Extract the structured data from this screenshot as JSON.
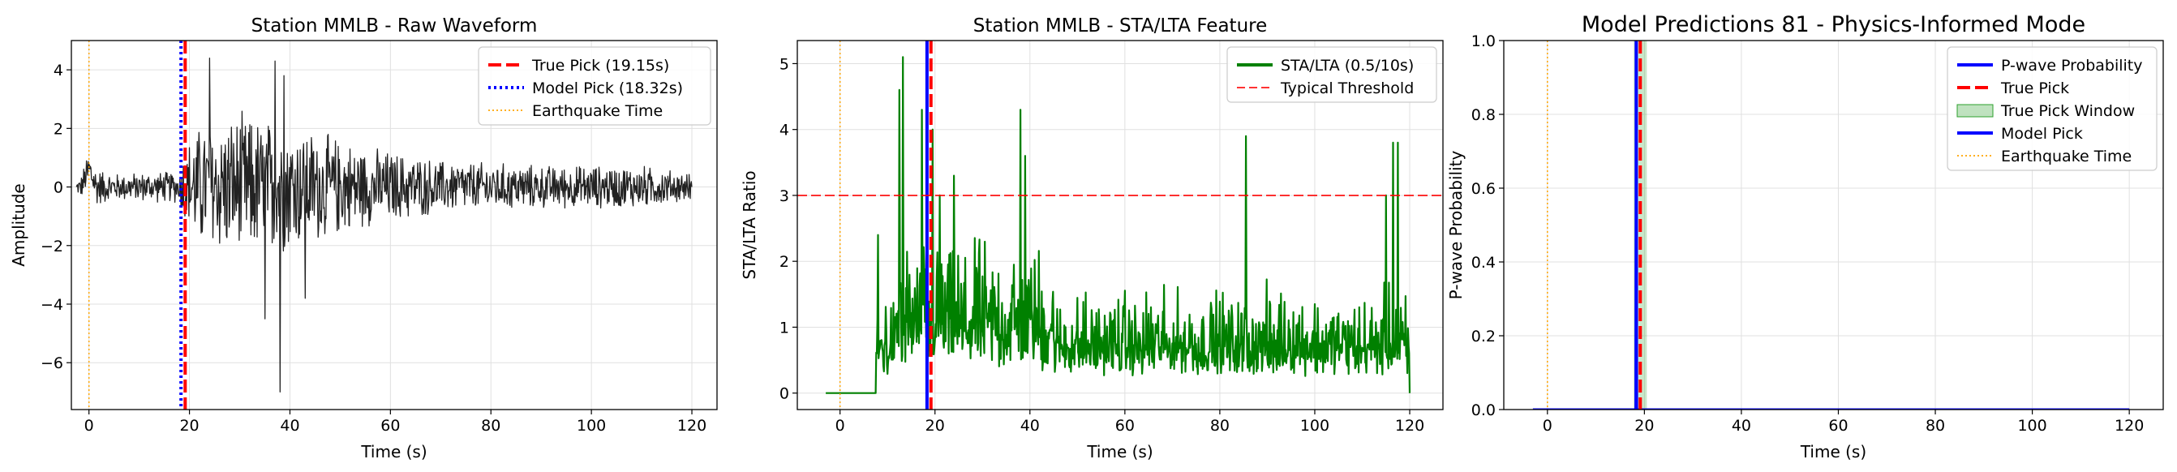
{
  "chart_data": [
    {
      "type": "line",
      "title": "Station MMLB - Raw Waveform",
      "xlabel": "Time (s)",
      "ylabel": "Amplitude",
      "xlim": [
        -3.5,
        125
      ],
      "ylim": [
        -7.6,
        5.0
      ],
      "xticks": [
        0,
        20,
        40,
        60,
        80,
        100,
        120
      ],
      "xtick_labels": [
        "0",
        "20",
        "40",
        "60",
        "80",
        "100",
        "120"
      ],
      "yticks": [
        -6,
        -4,
        -2,
        0,
        2,
        4
      ],
      "ytick_labels": [
        "−6",
        "−4",
        "−2",
        "0",
        "2",
        "4"
      ],
      "grid": true,
      "legend_position": "top-right",
      "series": [
        {
          "name": "",
          "kind": "noise",
          "color": "#222222",
          "x_start": -2.5,
          "x_end": 120,
          "envelope": [
            [
              -2.5,
              0.2
            ],
            [
              0,
              0.8
            ],
            [
              5,
              0.5
            ],
            [
              18,
              0.6
            ],
            [
              19,
              1.5
            ],
            [
              22,
              2.3
            ],
            [
              30,
              2.7
            ],
            [
              40,
              2.4
            ],
            [
              55,
              1.5
            ],
            [
              70,
              1.0
            ],
            [
              90,
              0.8
            ],
            [
              110,
              0.8
            ],
            [
              120,
              0.5
            ]
          ],
          "spikes": [
            [
              24,
              4.4
            ],
            [
              35,
              -4.5
            ],
            [
              38,
              -7.0
            ],
            [
              38.8,
              3.8
            ],
            [
              43,
              -3.8
            ],
            [
              37,
              4.3
            ]
          ]
        }
      ],
      "vlines": [
        {
          "name": "True Pick (19.15s)",
          "x": 19.15,
          "color": "#ff0000",
          "style": "dashed"
        },
        {
          "name": "Model Pick (18.32s)",
          "x": 18.32,
          "color": "#0000ff",
          "style": "dotted"
        },
        {
          "name": "Earthquake Time",
          "x": 0,
          "color": "#ffa500",
          "style": "dotted-thin"
        }
      ],
      "legend": [
        "True Pick (19.15s)",
        "Model Pick (18.32s)",
        "Earthquake Time"
      ]
    },
    {
      "type": "line",
      "title": "Station MMLB - STA/LTA Feature",
      "xlabel": "Time (s)",
      "ylabel": "STA/LTA Ratio",
      "xlim": [
        -9,
        127
      ],
      "ylim": [
        -0.25,
        5.35
      ],
      "xticks": [
        0,
        20,
        40,
        60,
        80,
        100,
        120
      ],
      "xtick_labels": [
        "0",
        "20",
        "40",
        "60",
        "80",
        "100",
        "120"
      ],
      "yticks": [
        0,
        1,
        2,
        3,
        4,
        5
      ],
      "ytick_labels": [
        "0",
        "1",
        "2",
        "3",
        "4",
        "5"
      ],
      "grid": true,
      "legend_position": "top-right",
      "series": [
        {
          "name": "STA/LTA (0.5/10s)",
          "kind": "stalta",
          "color": "#008000",
          "flat_until": 7.5,
          "x_end": 120,
          "peaks": [
            [
              8,
              2.4
            ],
            [
              12.5,
              4.6
            ],
            [
              13.2,
              5.1
            ],
            [
              17.3,
              4.3
            ],
            [
              19.5,
              4.0
            ],
            [
              21,
              3.0
            ],
            [
              24,
              3.3
            ],
            [
              38,
              4.3
            ],
            [
              39,
              3.6
            ],
            [
              85.5,
              3.9
            ],
            [
              115,
              3.0
            ],
            [
              116.5,
              3.8
            ],
            [
              117.5,
              3.8
            ]
          ]
        }
      ],
      "hlines": [
        {
          "name": "Typical Threshold",
          "y": 3.0,
          "color": "#ff0000",
          "style": "dashed"
        }
      ],
      "vlines": [
        {
          "name": "",
          "x": 0,
          "color": "#ffa500",
          "style": "dotted-thin"
        },
        {
          "name": "",
          "x": 18.32,
          "color": "#0000ff",
          "style": "solid-thick"
        },
        {
          "name": "",
          "x": 19.15,
          "color": "#ff0000",
          "style": "dashed"
        }
      ],
      "legend": [
        "STA/LTA (0.5/10s)",
        "Typical Threshold"
      ]
    },
    {
      "type": "line",
      "title": "Model Predictions 81 - Physics-Informed Mode",
      "xlabel": "Time (s)",
      "ylabel": "P-wave Probability",
      "xlim": [
        -9,
        127
      ],
      "ylim": [
        0,
        1.0
      ],
      "xticks": [
        0,
        20,
        40,
        60,
        80,
        100,
        120
      ],
      "xtick_labels": [
        "0",
        "20",
        "40",
        "60",
        "80",
        "100",
        "120"
      ],
      "yticks": [
        0.0,
        0.2,
        0.4,
        0.6,
        0.8,
        1.0
      ],
      "ytick_labels": [
        "0.0",
        "0.2",
        "0.4",
        "0.6",
        "0.8",
        "1.0"
      ],
      "grid": true,
      "legend_position": "top-right",
      "series": [
        {
          "name": "P-wave Probability",
          "x": [
            -3,
            18.2,
            18.32,
            18.45,
            120
          ],
          "y": [
            0,
            0,
            1.0,
            0,
            0
          ],
          "color": "#0000ff"
        }
      ],
      "spans": [
        {
          "name": "True Pick Window",
          "x0": 17.8,
          "x1": 20.5,
          "color": "#2ca02c"
        }
      ],
      "vlines": [
        {
          "name": "True Pick",
          "x": 19.15,
          "color": "#ff0000",
          "style": "dashed"
        },
        {
          "name": "Model Pick",
          "x": 18.32,
          "color": "#0000ff",
          "style": "solid"
        },
        {
          "name": "Earthquake Time",
          "x": 0,
          "color": "#ffa500",
          "style": "dotted-thin"
        }
      ],
      "legend": [
        "P-wave Probability",
        "True Pick",
        "True Pick Window",
        "Model Pick",
        "Earthquake Time"
      ]
    }
  ]
}
